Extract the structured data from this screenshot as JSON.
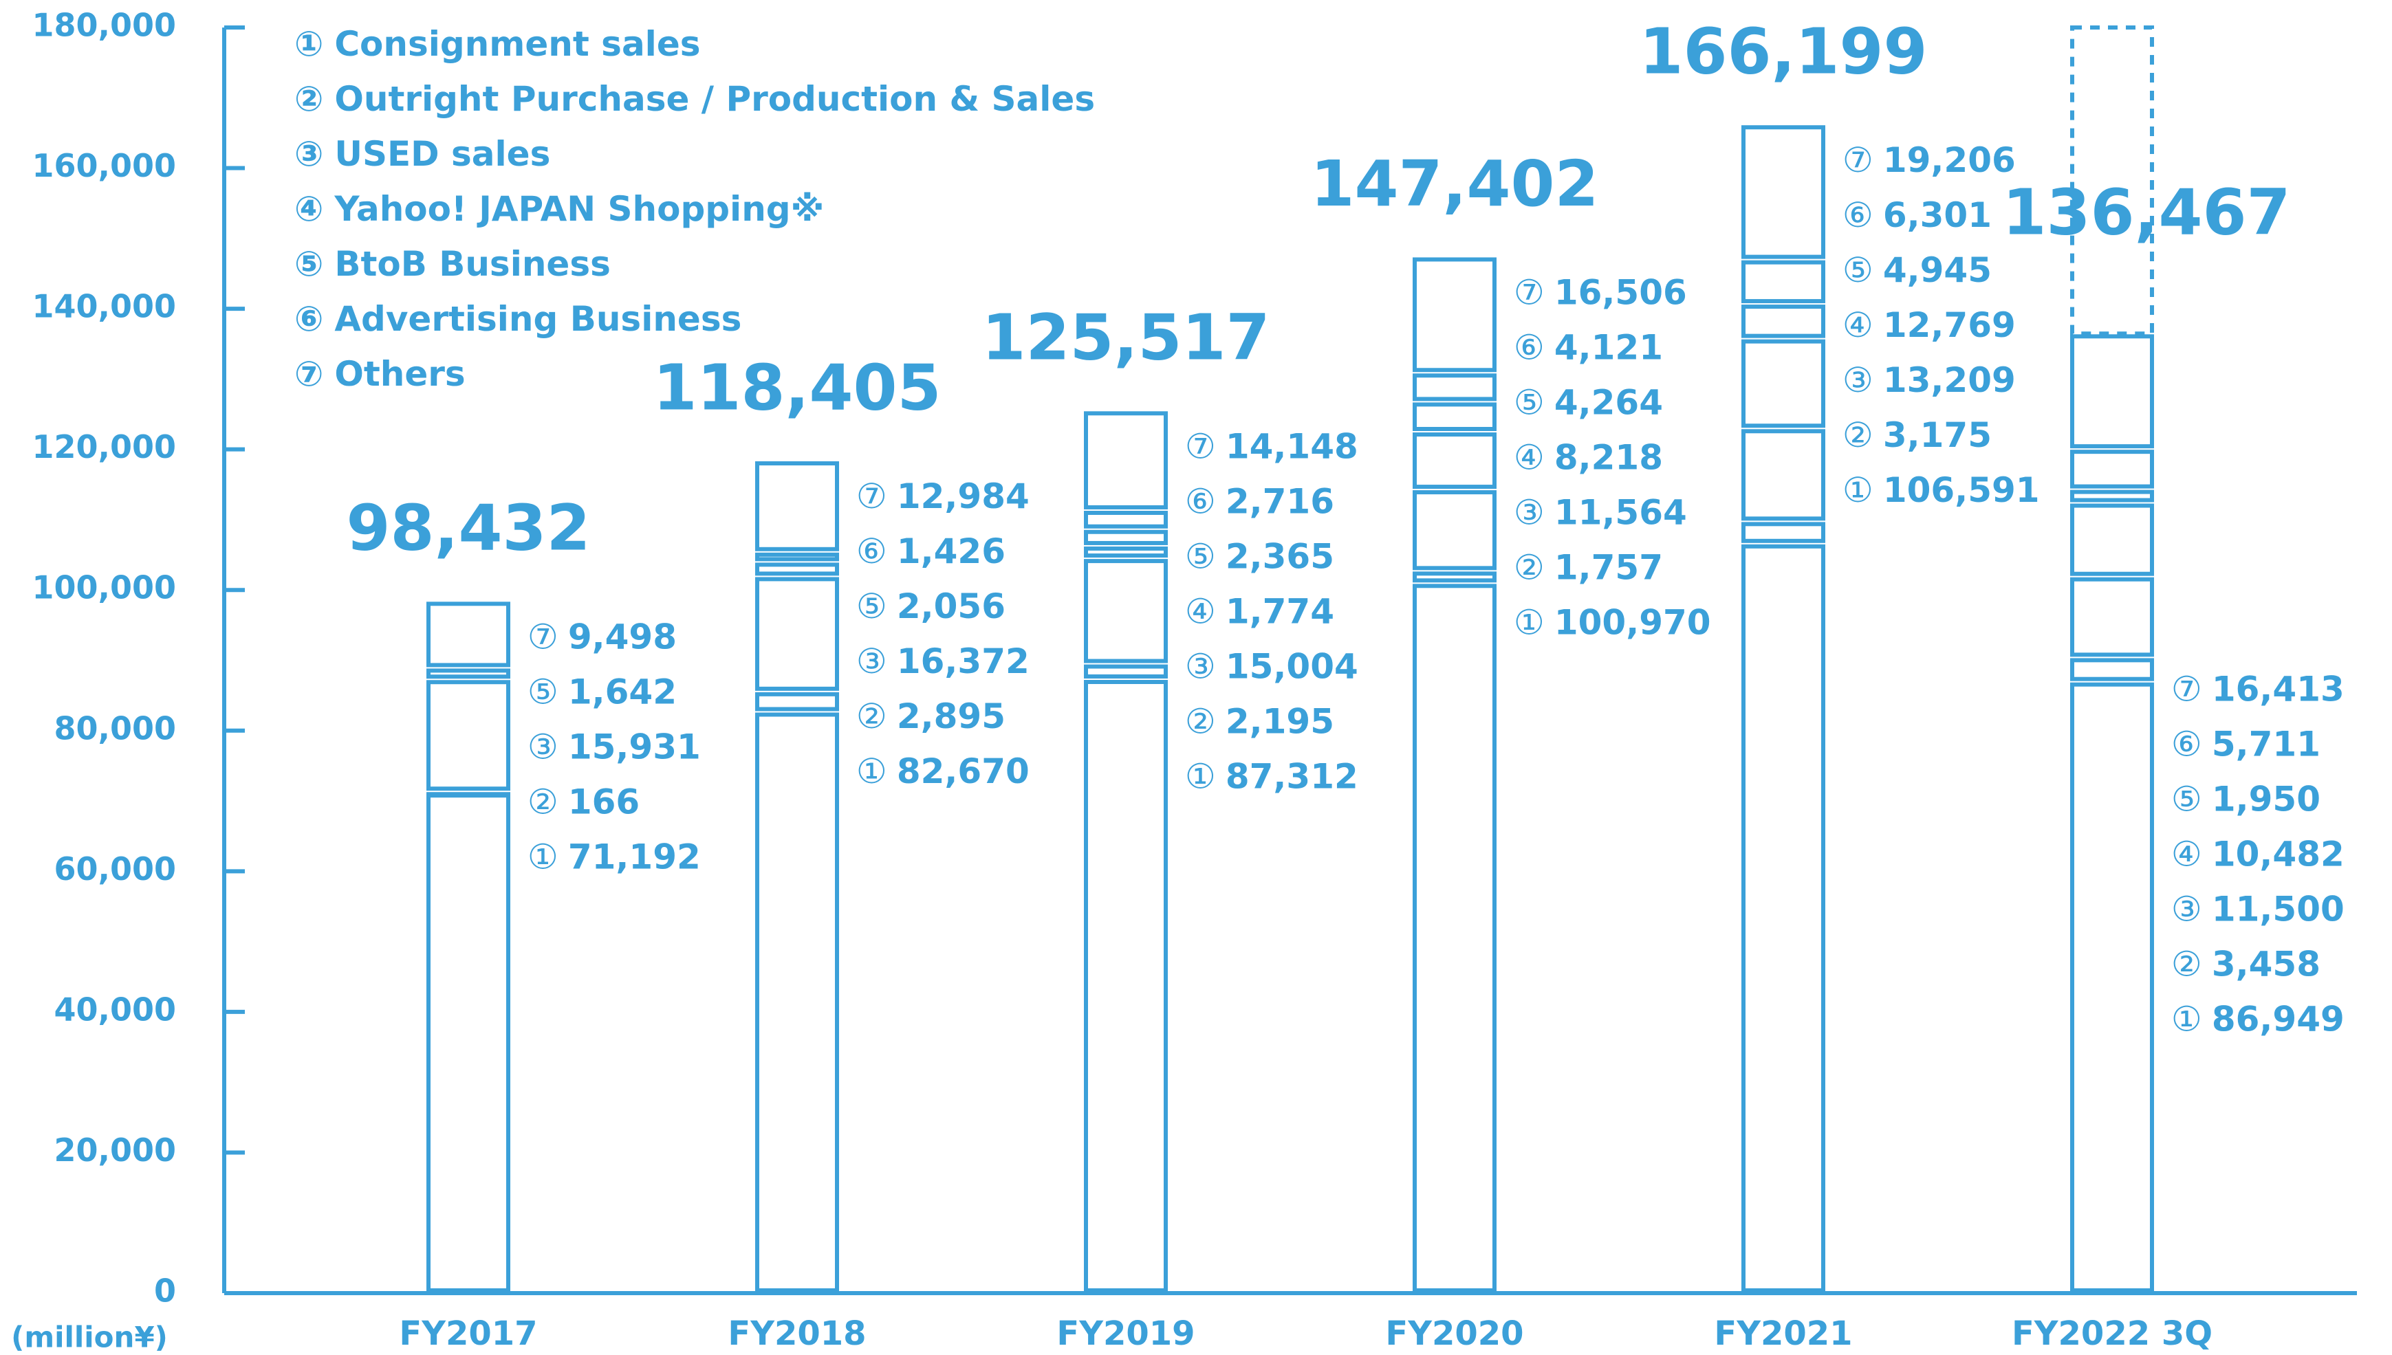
{
  "chart_data": {
    "type": "stacked-bar",
    "categories": [
      "FY2017",
      "FY2018",
      "FY2019",
      "FY2020",
      "FY2021",
      "FY2022 3Q"
    ],
    "y_label": "(million¥)",
    "ylim": [
      0,
      180000
    ],
    "yticks": [
      0,
      {
        "value": 20000,
        "label": "20,000"
      },
      {
        "value": 40000,
        "label": "40,000"
      },
      {
        "value": 60000,
        "label": "60,000"
      },
      {
        "value": 80000,
        "label": "80,000"
      },
      {
        "value": 100000,
        "label": "100,000"
      },
      {
        "value": 120000,
        "label": "120,000"
      },
      {
        "value": 140000,
        "label": "140,000"
      },
      {
        "value": 160000,
        "label": "160,000"
      },
      {
        "value": 180000,
        "label": "180,000"
      }
    ],
    "legend_position": "top-left",
    "series": [
      {
        "marker": "①",
        "name": "Consignment sales",
        "color": "#3ba0d9",
        "values": [
          71192,
          82670,
          87312,
          100970,
          106591,
          86949
        ],
        "value_labels": [
          "71,192",
          "82,670",
          "87,312",
          "100,970",
          "106,591",
          "86,949"
        ]
      },
      {
        "marker": "②",
        "name": "Outright Purchase / Production & Sales",
        "color": "#3ba0d9",
        "values": [
          166,
          2895,
          2195,
          1757,
          3175,
          3458
        ],
        "value_labels": [
          "166",
          "2,895",
          "2,195",
          "1,757",
          "3,175",
          "3,458"
        ]
      },
      {
        "marker": "③",
        "name": "USED sales",
        "color": "#3ba0d9",
        "values": [
          15931,
          16372,
          15004,
          11564,
          13209,
          11500
        ],
        "value_labels": [
          "15,931",
          "16,372",
          "15,004",
          "11,564",
          "13,209",
          "11,500"
        ]
      },
      {
        "marker": "④",
        "name": "Yahoo! JAPAN Shopping※",
        "color": "#3ba0d9",
        "values": [
          null,
          null,
          1774,
          8218,
          12769,
          10482
        ],
        "value_labels": [
          null,
          null,
          "1,774",
          "8,218",
          "12,769",
          "10,482"
        ]
      },
      {
        "marker": "⑤",
        "name": "BtoB Business",
        "color": "#3ba0d9",
        "values": [
          1642,
          2056,
          2365,
          4264,
          4945,
          1950
        ],
        "value_labels": [
          "1,642",
          "2,056",
          "2,365",
          "4,264",
          "4,945",
          "1,950"
        ]
      },
      {
        "marker": "⑥",
        "name": "Advertising Business",
        "color": "#3ba0d9",
        "values": [
          null,
          1426,
          2716,
          4121,
          6301,
          5711
        ],
        "value_labels": [
          null,
          "1,426",
          "2,716",
          "4,121",
          "6,301",
          "5,711"
        ]
      },
      {
        "marker": "⑦",
        "name": "Others",
        "color": "#3ba0d9",
        "values": [
          9498,
          12984,
          14148,
          16506,
          19206,
          16413
        ],
        "value_labels": [
          "9,498",
          "12,984",
          "14,148",
          "16,506",
          "19,206",
          "16,413"
        ]
      }
    ],
    "totals": {
      "values": [
        98432,
        118405,
        125517,
        147402,
        166199,
        136467
      ],
      "value_labels": [
        "98,432",
        "118,405",
        "125,517",
        "147,402",
        "166,199",
        "136,467"
      ]
    }
  }
}
